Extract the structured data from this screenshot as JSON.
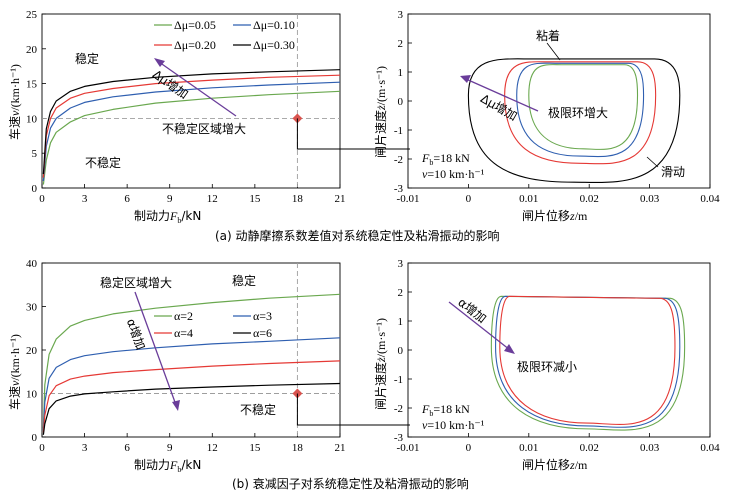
{
  "colors": {
    "green": "#6aa84f",
    "blue": "#2f5fb0",
    "red": "#e53935",
    "black": "#000000",
    "arrow": "#6a3d9a",
    "diamond": "#d9544f",
    "dash": "#9e9e9e"
  },
  "captions": {
    "a": "(a) 动静摩擦系数差值对系统稳定性及粘滑振动的影响",
    "b": "(b) 衰减因子对系统稳定性及粘滑振动的影响"
  },
  "chart_data": [
    {
      "id": "a-left",
      "type": "line",
      "xlabel": "制动力F_b/kN",
      "ylabel": "车速v/(km·h⁻¹)",
      "xlim": [
        0,
        21
      ],
      "ylim": [
        0,
        25
      ],
      "xticks": [
        0,
        3,
        6,
        9,
        12,
        15,
        18,
        21
      ],
      "yticks": [
        0,
        5,
        10,
        15,
        20,
        25
      ],
      "legend": [
        "Δμ=0.05",
        "Δμ=0.10",
        "Δμ=0.20",
        "Δμ=0.30"
      ],
      "region_labels": {
        "stable": "稳定",
        "unstable": "不稳定",
        "arrow": "Δμ增加",
        "growth": "不稳定区域增大"
      },
      "reference": {
        "v": 10,
        "F": 18
      },
      "series": [
        {
          "name": "Δμ=0.05",
          "color": "green",
          "points": [
            [
              0.1,
              0.5
            ],
            [
              0.3,
              4
            ],
            [
              0.6,
              6.5
            ],
            [
              1,
              8
            ],
            [
              2,
              9.5
            ],
            [
              3,
              10.4
            ],
            [
              5,
              11.3
            ],
            [
              8,
              12.2
            ],
            [
              12,
              12.9
            ],
            [
              16,
              13.4
            ],
            [
              21,
              13.9
            ]
          ]
        },
        {
          "name": "Δμ=0.10",
          "color": "blue",
          "points": [
            [
              0.1,
              1
            ],
            [
              0.3,
              6
            ],
            [
              0.6,
              8.6
            ],
            [
              1,
              10
            ],
            [
              2,
              11.5
            ],
            [
              3,
              12.3
            ],
            [
              5,
              13.1
            ],
            [
              8,
              13.8
            ],
            [
              12,
              14.4
            ],
            [
              16,
              14.8
            ],
            [
              21,
              15.2
            ]
          ]
        },
        {
          "name": "Δμ=0.20",
          "color": "red",
          "points": [
            [
              0.1,
              1.5
            ],
            [
              0.3,
              7.5
            ],
            [
              0.6,
              10
            ],
            [
              1,
              11.5
            ],
            [
              2,
              12.9
            ],
            [
              3,
              13.6
            ],
            [
              5,
              14.3
            ],
            [
              8,
              15
            ],
            [
              12,
              15.5
            ],
            [
              16,
              15.9
            ],
            [
              21,
              16.2
            ]
          ]
        },
        {
          "name": "Δμ=0.30",
          "color": "black",
          "points": [
            [
              0.1,
              2
            ],
            [
              0.3,
              8.5
            ],
            [
              0.6,
              11
            ],
            [
              1,
              12.5
            ],
            [
              2,
              13.9
            ],
            [
              3,
              14.6
            ],
            [
              5,
              15.3
            ],
            [
              8,
              15.9
            ],
            [
              12,
              16.4
            ],
            [
              16,
              16.7
            ],
            [
              21,
              17
            ]
          ]
        }
      ]
    },
    {
      "id": "a-right",
      "type": "line",
      "xlabel": "闸片位移z/m",
      "ylabel": "闸片速度ż/(m·s⁻¹)",
      "xlim": [
        -0.01,
        0.04
      ],
      "ylim": [
        -3,
        3
      ],
      "xticks": [
        -0.01,
        0,
        0.01,
        0.02,
        0.03,
        0.04
      ],
      "yticks": [
        -3,
        -2,
        -1,
        0,
        1,
        2,
        3
      ],
      "labels": {
        "stick": "粘着",
        "slip": "滑动",
        "arrow": "Δμ增加",
        "cycle": "极限环增大",
        "force": "F_b=18 kN",
        "speed": "v=10 km·h⁻¹"
      },
      "loops": [
        {
          "name": "Δμ=0.05",
          "color": "green",
          "cx": 0.019,
          "rx": 0.009,
          "top": 1.25,
          "bottom": -1.65
        },
        {
          "name": "Δμ=0.10",
          "color": "blue",
          "cx": 0.0185,
          "rx": 0.0105,
          "top": 1.3,
          "bottom": -1.9
        },
        {
          "name": "Δμ=0.20",
          "color": "red",
          "cx": 0.0185,
          "rx": 0.0125,
          "top": 1.35,
          "bottom": -2.15
        },
        {
          "name": "Δμ=0.30",
          "color": "black",
          "cx": 0.0175,
          "rx": 0.0175,
          "top": 1.45,
          "bottom": -2.8
        }
      ]
    },
    {
      "id": "b-left",
      "type": "line",
      "xlabel": "制动力F_b/kN",
      "ylabel": "车速v/(km·h⁻¹)",
      "xlim": [
        0,
        21
      ],
      "ylim": [
        0,
        40
      ],
      "xticks": [
        0,
        3,
        6,
        9,
        12,
        15,
        18,
        21
      ],
      "yticks": [
        0,
        10,
        20,
        30,
        40
      ],
      "legend": [
        "α=2",
        "α=3",
        "α=4",
        "α=6"
      ],
      "region_labels": {
        "stable": "稳定",
        "unstable": "不稳定",
        "arrow": "α增加",
        "growth": "稳定区域增大"
      },
      "reference": {
        "v": 10,
        "F": 18
      },
      "series": [
        {
          "name": "α=2",
          "color": "green",
          "points": [
            [
              0.1,
              2
            ],
            [
              0.2,
              12
            ],
            [
              0.5,
              19
            ],
            [
              1,
              22.5
            ],
            [
              2,
              25.5
            ],
            [
              3,
              26.8
            ],
            [
              5,
              28.3
            ],
            [
              8,
              29.6
            ],
            [
              12,
              30.9
            ],
            [
              16,
              31.9
            ],
            [
              21,
              32.8
            ]
          ]
        },
        {
          "name": "α=3",
          "color": "blue",
          "points": [
            [
              0.1,
              1.5
            ],
            [
              0.2,
              8
            ],
            [
              0.5,
              13.5
            ],
            [
              1,
              16
            ],
            [
              2,
              17.8
            ],
            [
              3,
              18.7
            ],
            [
              5,
              19.6
            ],
            [
              8,
              20.5
            ],
            [
              12,
              21.4
            ],
            [
              16,
              22
            ],
            [
              21,
              22.8
            ]
          ]
        },
        {
          "name": "α=4",
          "color": "red",
          "points": [
            [
              0.1,
              1
            ],
            [
              0.2,
              5
            ],
            [
              0.5,
              9.5
            ],
            [
              1,
              11.8
            ],
            [
              2,
              13.3
            ],
            [
              3,
              14
            ],
            [
              5,
              14.8
            ],
            [
              8,
              15.5
            ],
            [
              12,
              16.3
            ],
            [
              16,
              16.9
            ],
            [
              21,
              17.5
            ]
          ]
        },
        {
          "name": "α=6",
          "color": "black",
          "points": [
            [
              0.1,
              0.5
            ],
            [
              0.2,
              3
            ],
            [
              0.5,
              6.5
            ],
            [
              1,
              8.3
            ],
            [
              2,
              9.4
            ],
            [
              3,
              9.9
            ],
            [
              5,
              10.4
            ],
            [
              8,
              11
            ],
            [
              12,
              11.5
            ],
            [
              16,
              11.9
            ],
            [
              21,
              12.3
            ]
          ]
        }
      ]
    },
    {
      "id": "b-right",
      "type": "line",
      "xlabel": "闸片位移z/m",
      "ylabel": "闸片速度ż/(m·s⁻¹)",
      "xlim": [
        -0.01,
        0.04
      ],
      "ylim": [
        -3,
        3
      ],
      "xticks": [
        -0.01,
        0,
        0.01,
        0.02,
        0.03,
        0.04
      ],
      "yticks": [
        -3,
        -2,
        -1,
        0,
        1,
        2,
        3
      ],
      "labels": {
        "arrow": "α增加",
        "cycle": "极限环减小",
        "force": "F_b=18 kN",
        "speed": "v=10 km·h⁻¹"
      },
      "loops": [
        {
          "name": "α=2",
          "color": "green",
          "left": 0.0038,
          "right": 0.0358,
          "bottom": -2.72
        },
        {
          "name": "α=3",
          "color": "blue",
          "left": 0.0045,
          "right": 0.035,
          "bottom": -2.62
        },
        {
          "name": "α=4",
          "color": "red",
          "left": 0.0052,
          "right": 0.0342,
          "bottom": -2.52
        }
      ]
    }
  ]
}
